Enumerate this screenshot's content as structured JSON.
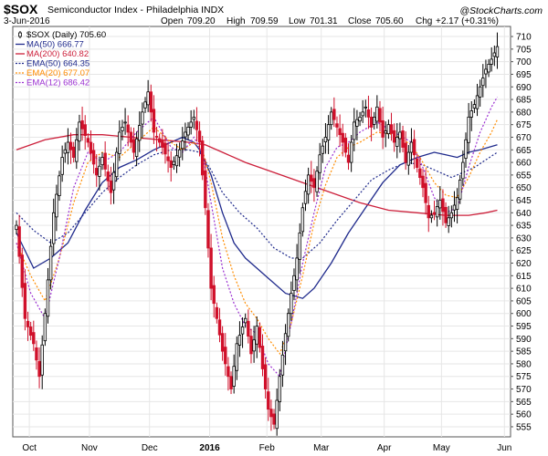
{
  "header": {
    "symbol": "$SOX",
    "name": "Semiconductor Index - Philadelphia INDX",
    "watermark": "@StockCharts.com",
    "date": "3-Jun-2016",
    "open_label": "Open",
    "open": "709.20",
    "high_label": "High",
    "high": "709.59",
    "low_label": "Low",
    "low": "701.31",
    "close_label": "Close",
    "close": "705.60",
    "chg_label": "Chg",
    "chg": "+2.17 (+0.31%)"
  },
  "legend": [
    {
      "label": "$SOX (Daily) 705.60",
      "color": "#000000",
      "style": "candle"
    },
    {
      "label": "MA(50) 666.77",
      "color": "#1f2a8c",
      "style": "solid"
    },
    {
      "label": "MA(200) 640.82",
      "color": "#cc1f3a",
      "style": "solid"
    },
    {
      "label": "EMA(50) 664.35",
      "color": "#1f2a8c",
      "style": "dotted"
    },
    {
      "label": "EMA(20) 677.07",
      "color": "#ff8c00",
      "style": "dotted"
    },
    {
      "label": "EMA(12) 686.42",
      "color": "#9b30d0",
      "style": "dotted"
    }
  ],
  "chart_data": {
    "type": "line",
    "title": "$SOX Semiconductor Index - Philadelphia INDX",
    "ylim": [
      551,
      714
    ],
    "yticks": [
      555,
      560,
      565,
      570,
      575,
      580,
      585,
      590,
      595,
      600,
      605,
      610,
      615,
      620,
      625,
      630,
      635,
      640,
      645,
      650,
      655,
      660,
      665,
      670,
      675,
      680,
      685,
      690,
      695,
      700,
      705,
      710
    ],
    "xticks": [
      {
        "label": "Oct",
        "x": 4.5
      },
      {
        "label": "Nov",
        "x": 25.5
      },
      {
        "label": "Dec",
        "x": 46.5
      },
      {
        "label": "2016",
        "x": 67.5,
        "bold": true
      },
      {
        "label": "Feb",
        "x": 87.5
      },
      {
        "label": "Mar",
        "x": 106.5
      },
      {
        "label": "Apr",
        "x": 128.5
      },
      {
        "label": "May",
        "x": 148.5
      },
      {
        "label": "Jun",
        "x": 170.5
      }
    ],
    "series": [
      {
        "name": "$SOX (Daily) 705.60",
        "color": "#000000",
        "close": [
          [
            0,
            635
          ],
          [
            3,
            598
          ],
          [
            6,
            588
          ],
          [
            8,
            575
          ],
          [
            10,
            600
          ],
          [
            13,
            640
          ],
          [
            16,
            662
          ],
          [
            18,
            668
          ],
          [
            20,
            662
          ],
          [
            22,
            676
          ],
          [
            25,
            668
          ],
          [
            28,
            655
          ],
          [
            30,
            662
          ],
          [
            33,
            648
          ],
          [
            36,
            672
          ],
          [
            38,
            676
          ],
          [
            41,
            664
          ],
          [
            44,
            680
          ],
          [
            46,
            688
          ],
          [
            48,
            672
          ],
          [
            51,
            666
          ],
          [
            54,
            658
          ],
          [
            57,
            665
          ],
          [
            59,
            672
          ],
          [
            62,
            678
          ],
          [
            64,
            668
          ],
          [
            66,
            642
          ],
          [
            68,
            610
          ],
          [
            70,
            598
          ],
          [
            72,
            585
          ],
          [
            75,
            570
          ],
          [
            77,
            588
          ],
          [
            80,
            598
          ],
          [
            82,
            584
          ],
          [
            84,
            595
          ],
          [
            86,
            578
          ],
          [
            88,
            562
          ],
          [
            90,
            556
          ],
          [
            92,
            575
          ],
          [
            94,
            592
          ],
          [
            96,
            608
          ],
          [
            98,
            622
          ],
          [
            100,
            642
          ],
          [
            102,
            655
          ],
          [
            104,
            650
          ],
          [
            106,
            663
          ],
          [
            108,
            670
          ],
          [
            110,
            680
          ],
          [
            112,
            674
          ],
          [
            114,
            668
          ],
          [
            116,
            660
          ],
          [
            118,
            676
          ],
          [
            120,
            678
          ],
          [
            122,
            682
          ],
          [
            124,
            674
          ],
          [
            126,
            682
          ],
          [
            128,
            670
          ],
          [
            130,
            675
          ],
          [
            132,
            668
          ],
          [
            134,
            672
          ],
          [
            136,
            660
          ],
          [
            138,
            668
          ],
          [
            140,
            658
          ],
          [
            142,
            650
          ],
          [
            144,
            638
          ],
          [
            146,
            640
          ],
          [
            148,
            645
          ],
          [
            150,
            636
          ],
          [
            152,
            640
          ],
          [
            154,
            646
          ],
          [
            156,
            660
          ],
          [
            158,
            678
          ],
          [
            160,
            683
          ],
          [
            162,
            690
          ],
          [
            164,
            697
          ],
          [
            166,
            701
          ],
          [
            168,
            706
          ]
        ]
      },
      {
        "name": "MA(50) 666.77",
        "color": "#1f2a8c",
        "dash": "",
        "values": [
          [
            0,
            632
          ],
          [
            6,
            618
          ],
          [
            12,
            622
          ],
          [
            18,
            628
          ],
          [
            24,
            641
          ],
          [
            30,
            652
          ],
          [
            36,
            658
          ],
          [
            42,
            661
          ],
          [
            48,
            665
          ],
          [
            54,
            668
          ],
          [
            58,
            670
          ],
          [
            62,
            668
          ],
          [
            64,
            665
          ],
          [
            68,
            655
          ],
          [
            72,
            640
          ],
          [
            76,
            628
          ],
          [
            80,
            622
          ],
          [
            84,
            618
          ],
          [
            88,
            614
          ],
          [
            94,
            608
          ],
          [
            100,
            606
          ],
          [
            104,
            610
          ],
          [
            110,
            620
          ],
          [
            116,
            632
          ],
          [
            122,
            642
          ],
          [
            128,
            652
          ],
          [
            134,
            659
          ],
          [
            140,
            662
          ],
          [
            146,
            664
          ],
          [
            150,
            663
          ],
          [
            154,
            662
          ],
          [
            158,
            664
          ],
          [
            162,
            665
          ],
          [
            168,
            667
          ]
        ]
      },
      {
        "name": "MA(200) 640.82",
        "color": "#cc1f3a",
        "dash": "",
        "values": [
          [
            0,
            665
          ],
          [
            10,
            669
          ],
          [
            20,
            671
          ],
          [
            30,
            671
          ],
          [
            40,
            670
          ],
          [
            50,
            669
          ],
          [
            60,
            668
          ],
          [
            66,
            667
          ],
          [
            72,
            664
          ],
          [
            80,
            660
          ],
          [
            90,
            656
          ],
          [
            100,
            652
          ],
          [
            110,
            648
          ],
          [
            120,
            644
          ],
          [
            130,
            641
          ],
          [
            140,
            640
          ],
          [
            150,
            639
          ],
          [
            158,
            639
          ],
          [
            164,
            640
          ],
          [
            168,
            641
          ]
        ]
      },
      {
        "name": "EMA(50) 664.35",
        "color": "#1f2a8c",
        "dash": "2,2",
        "values": [
          [
            0,
            640
          ],
          [
            6,
            633
          ],
          [
            12,
            628
          ],
          [
            18,
            632
          ],
          [
            24,
            640
          ],
          [
            30,
            648
          ],
          [
            36,
            654
          ],
          [
            42,
            659
          ],
          [
            48,
            663
          ],
          [
            54,
            665
          ],
          [
            60,
            665
          ],
          [
            64,
            664
          ],
          [
            68,
            657
          ],
          [
            72,
            648
          ],
          [
            78,
            640
          ],
          [
            84,
            634
          ],
          [
            90,
            626
          ],
          [
            96,
            622
          ],
          [
            100,
            622
          ],
          [
            106,
            628
          ],
          [
            112,
            637
          ],
          [
            118,
            645
          ],
          [
            124,
            653
          ],
          [
            130,
            657
          ],
          [
            136,
            660
          ],
          [
            142,
            659
          ],
          [
            148,
            656
          ],
          [
            152,
            654
          ],
          [
            156,
            656
          ],
          [
            160,
            658
          ],
          [
            164,
            661
          ],
          [
            168,
            664
          ]
        ]
      },
      {
        "name": "EMA(20) 677.07",
        "color": "#ff8c00",
        "dash": "2,2",
        "values": [
          [
            0,
            628
          ],
          [
            5,
            615
          ],
          [
            10,
            605
          ],
          [
            15,
            622
          ],
          [
            20,
            644
          ],
          [
            25,
            660
          ],
          [
            30,
            664
          ],
          [
            36,
            662
          ],
          [
            42,
            668
          ],
          [
            48,
            674
          ],
          [
            54,
            668
          ],
          [
            58,
            665
          ],
          [
            62,
            668
          ],
          [
            65,
            665
          ],
          [
            68,
            652
          ],
          [
            72,
            630
          ],
          [
            76,
            615
          ],
          [
            80,
            604
          ],
          [
            84,
            598
          ],
          [
            88,
            590
          ],
          [
            92,
            584
          ],
          [
            96,
            596
          ],
          [
            100,
            615
          ],
          [
            104,
            636
          ],
          [
            108,
            651
          ],
          [
            112,
            662
          ],
          [
            116,
            666
          ],
          [
            120,
            668
          ],
          [
            126,
            672
          ],
          [
            132,
            671
          ],
          [
            138,
            667
          ],
          [
            142,
            660
          ],
          [
            146,
            652
          ],
          [
            150,
            647
          ],
          [
            154,
            646
          ],
          [
            158,
            654
          ],
          [
            162,
            664
          ],
          [
            166,
            672
          ],
          [
            168,
            677
          ]
        ]
      },
      {
        "name": "EMA(12) 686.42",
        "color": "#9b30d0",
        "dash": "2,2",
        "values": [
          [
            0,
            628
          ],
          [
            5,
            608
          ],
          [
            10,
            598
          ],
          [
            15,
            622
          ],
          [
            20,
            650
          ],
          [
            25,
            664
          ],
          [
            30,
            660
          ],
          [
            36,
            664
          ],
          [
            42,
            672
          ],
          [
            48,
            678
          ],
          [
            54,
            666
          ],
          [
            58,
            664
          ],
          [
            62,
            670
          ],
          [
            65,
            664
          ],
          [
            68,
            644
          ],
          [
            72,
            618
          ],
          [
            76,
            604
          ],
          [
            80,
            595
          ],
          [
            84,
            592
          ],
          [
            88,
            580
          ],
          [
            92,
            575
          ],
          [
            96,
            596
          ],
          [
            100,
            620
          ],
          [
            104,
            640
          ],
          [
            108,
            658
          ],
          [
            112,
            666
          ],
          [
            116,
            668
          ],
          [
            120,
            672
          ],
          [
            126,
            676
          ],
          [
            132,
            672
          ],
          [
            138,
            668
          ],
          [
            142,
            658
          ],
          [
            146,
            646
          ],
          [
            150,
            640
          ],
          [
            154,
            642
          ],
          [
            158,
            658
          ],
          [
            162,
            672
          ],
          [
            166,
            682
          ],
          [
            168,
            686
          ]
        ]
      }
    ]
  }
}
